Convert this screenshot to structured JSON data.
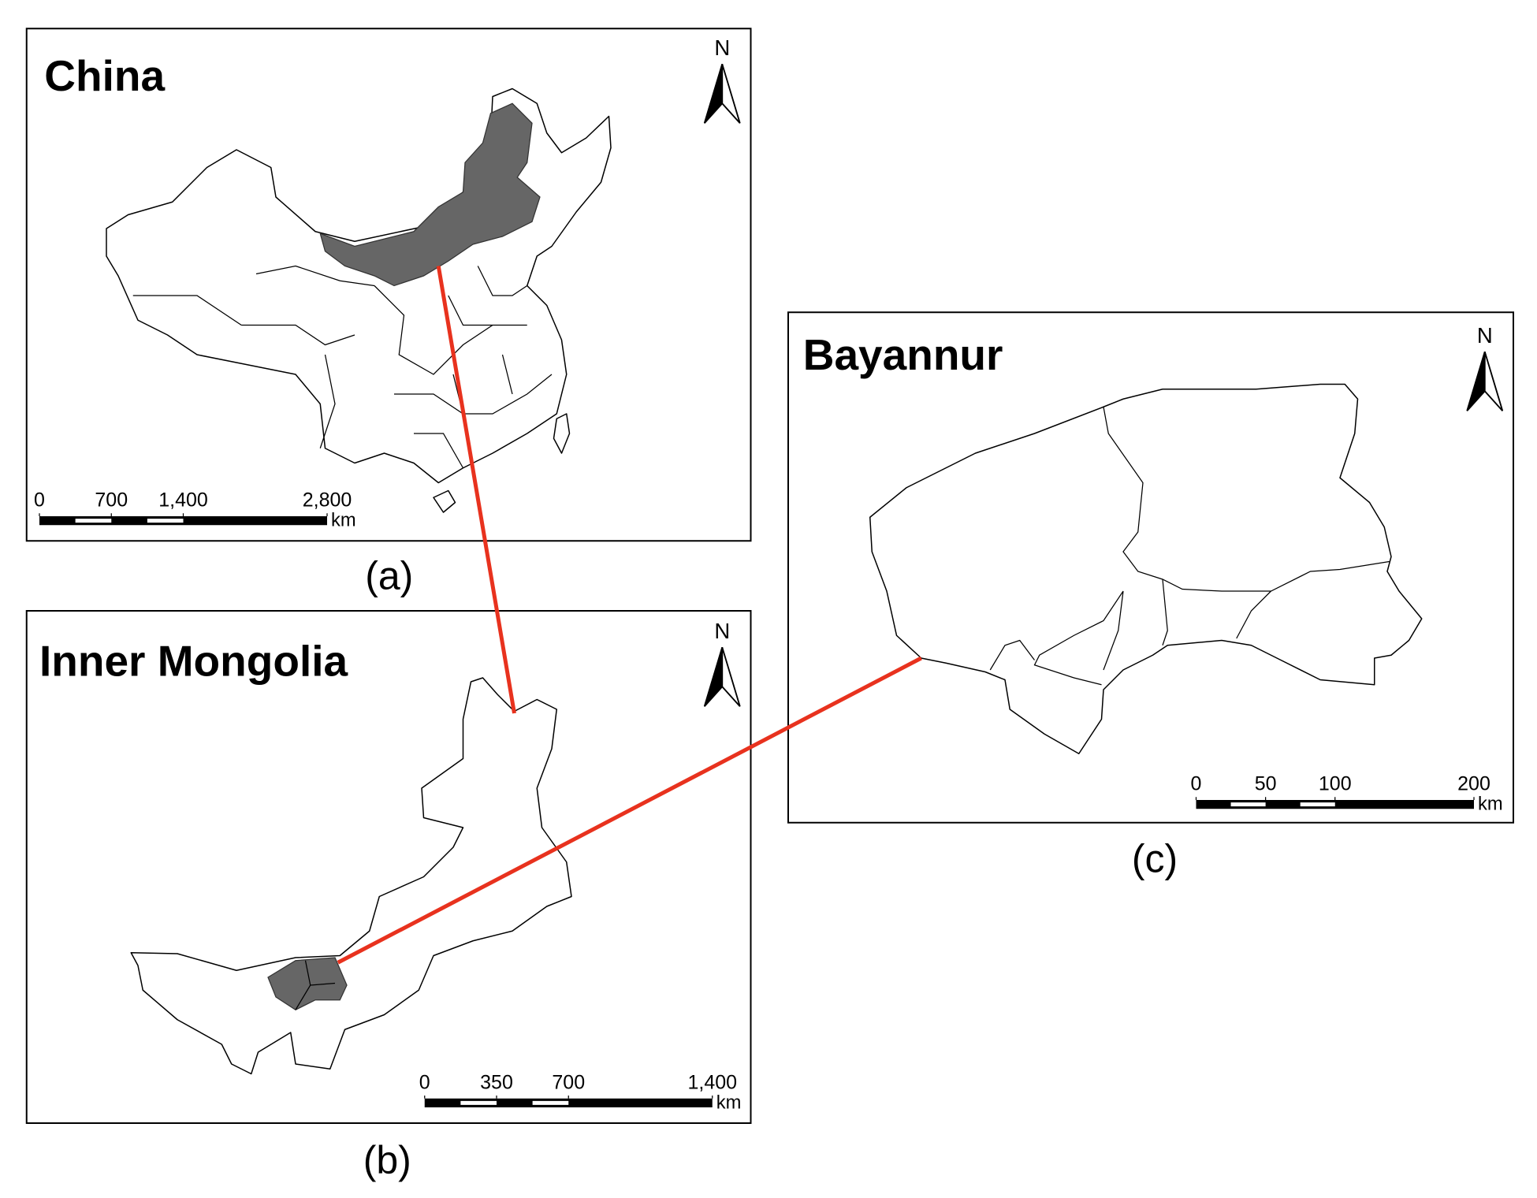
{
  "panels": [
    {
      "title": "China",
      "north": "N",
      "scale": {
        "ticks": [
          0,
          700,
          {
            "value": 1400,
            "label": "1,400"
          },
          {
            "value": 2800,
            "label": "2,800"
          }
        ],
        "unit": "km"
      },
      "caption": "(a)"
    },
    {
      "title": "Inner Mongolia",
      "north": "N",
      "scale": {
        "ticks": [
          0,
          350,
          700,
          {
            "value": 1400,
            "label": "1,400"
          }
        ],
        "unit": "km"
      },
      "caption": "(b)"
    },
    {
      "title": "Bayannur",
      "north": "N",
      "scale": {
        "ticks": [
          0,
          50,
          100,
          200
        ],
        "unit": "km"
      },
      "caption": "(c)"
    }
  ]
}
